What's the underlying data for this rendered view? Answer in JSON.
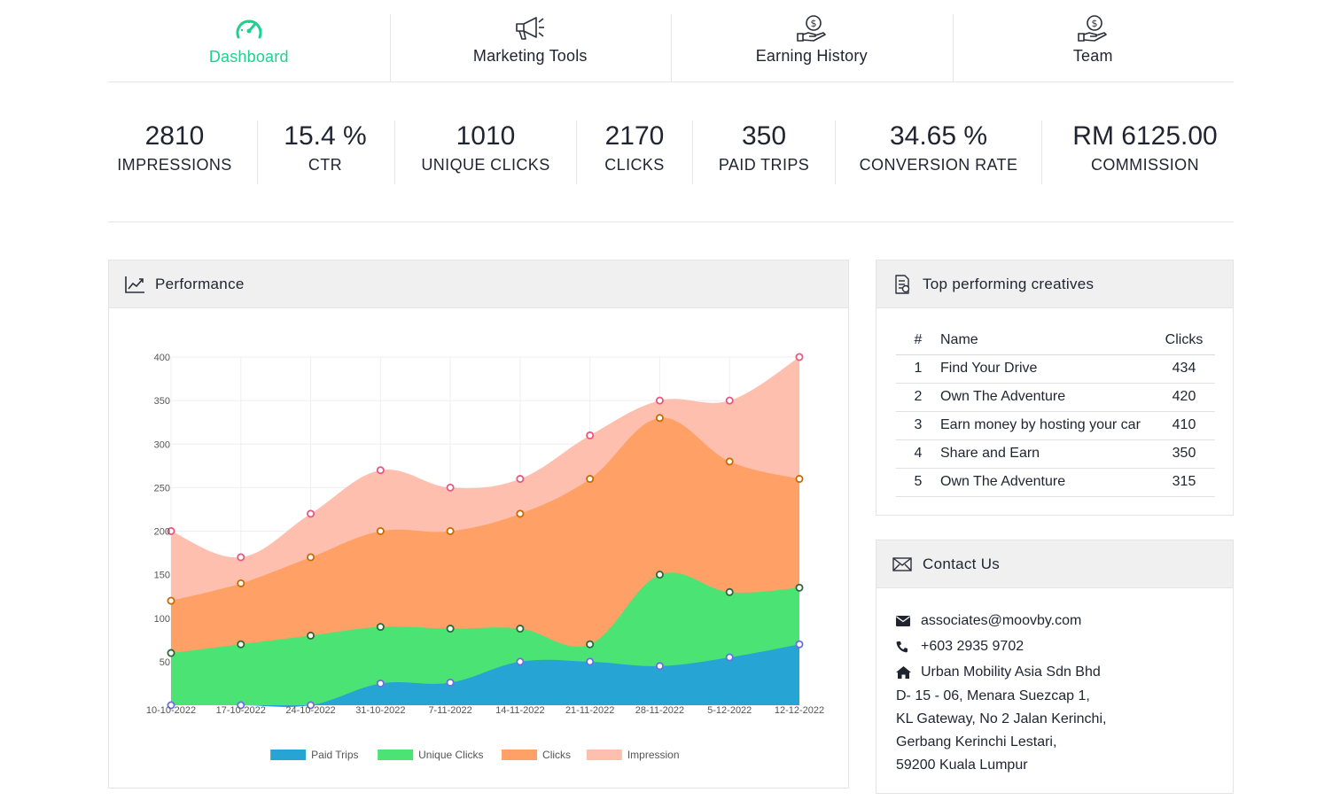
{
  "tabs": [
    {
      "label": "Dashboard",
      "icon": "speedometer-icon",
      "active": true
    },
    {
      "label": "Marketing Tools",
      "icon": "megaphone-icon",
      "active": false
    },
    {
      "label": "Earning History",
      "icon": "hand-money-icon",
      "active": false
    },
    {
      "label": "Team",
      "icon": "hand-money-icon",
      "active": false
    }
  ],
  "stats": [
    {
      "value": "2810",
      "label": "IMPRESSIONS"
    },
    {
      "value": "15.4 %",
      "label": "CTR"
    },
    {
      "value": "1010",
      "label": "UNIQUE CLICKS"
    },
    {
      "value": "2170",
      "label": "CLICKS"
    },
    {
      "value": "350",
      "label": "PAID TRIPS"
    },
    {
      "value": "34.65 %",
      "label": "CONVERSION RATE"
    },
    {
      "value": "RM 6125.00",
      "label": "COMMISSION"
    }
  ],
  "performance": {
    "title": "Performance",
    "icon": "line-chart-icon"
  },
  "creatives": {
    "title": "Top performing creatives",
    "icon": "report-icon",
    "headers": {
      "num": "#",
      "name": "Name",
      "clicks": "Clicks"
    },
    "rows": [
      {
        "num": "1",
        "name": "Find Your Drive",
        "clicks": "434"
      },
      {
        "num": "2",
        "name": "Own The Adventure",
        "clicks": "420"
      },
      {
        "num": "3",
        "name": "Earn money by hosting your car",
        "clicks": "410"
      },
      {
        "num": "4",
        "name": "Share and Earn",
        "clicks": "350"
      },
      {
        "num": "5",
        "name": "Own The Adventure",
        "clicks": "315"
      }
    ]
  },
  "contact": {
    "title": "Contact Us",
    "icon": "envelope-icon",
    "email": "associates@moovby.com",
    "phone": "+603 2935 9702",
    "company": "Urban Mobility Asia Sdn Bhd",
    "address": [
      "D- 15 - 06, Menara Suezcap 1,",
      "KL Gateway, No 2 Jalan Kerinchi,",
      "Gerbang Kerinchi Lestari,",
      "59200 Kuala Lumpur"
    ]
  },
  "colors": {
    "accent": "#1ed18e",
    "paid_trips": "#26a4d3",
    "unique_clicks": "#4be373",
    "clicks": "#ffa066",
    "impression": "#ffbfae"
  },
  "chart_data": {
    "type": "area",
    "stacked": false,
    "categories": [
      "10-10-2022",
      "17-10-2022",
      "24-10-2022",
      "31-10-2022",
      "7-11-2022",
      "14-11-2022",
      "21-11-2022",
      "28-11-2022",
      "5-12-2022",
      "12-12-2022"
    ],
    "ylim": [
      0,
      400
    ],
    "yticks": [
      "50",
      "100",
      "150",
      "200",
      "250",
      "300",
      "350",
      "400"
    ],
    "grid": true,
    "legend": "bottom",
    "series": [
      {
        "name": "Impression",
        "color": "#ffbfae",
        "marker": "#e8577e",
        "values": [
          200,
          170,
          220,
          270,
          250,
          260,
          310,
          350,
          350,
          400
        ]
      },
      {
        "name": "Clicks",
        "color": "#ffa066",
        "marker": "#c86a00",
        "values": [
          120,
          140,
          170,
          200,
          200,
          220,
          260,
          330,
          280,
          260
        ]
      },
      {
        "name": "Unique Clicks",
        "color": "#4be373",
        "marker": "#2a6b35",
        "values": [
          60,
          70,
          80,
          90,
          88,
          88,
          70,
          150,
          130,
          135
        ]
      },
      {
        "name": "Paid Trips",
        "color": "#26a4d3",
        "marker": "#6a6ee0",
        "values": [
          0,
          0,
          0,
          25,
          26,
          50,
          50,
          45,
          55,
          70
        ]
      }
    ],
    "legend_order": [
      "Paid Trips",
      "Unique Clicks",
      "Clicks",
      "Impression"
    ]
  }
}
